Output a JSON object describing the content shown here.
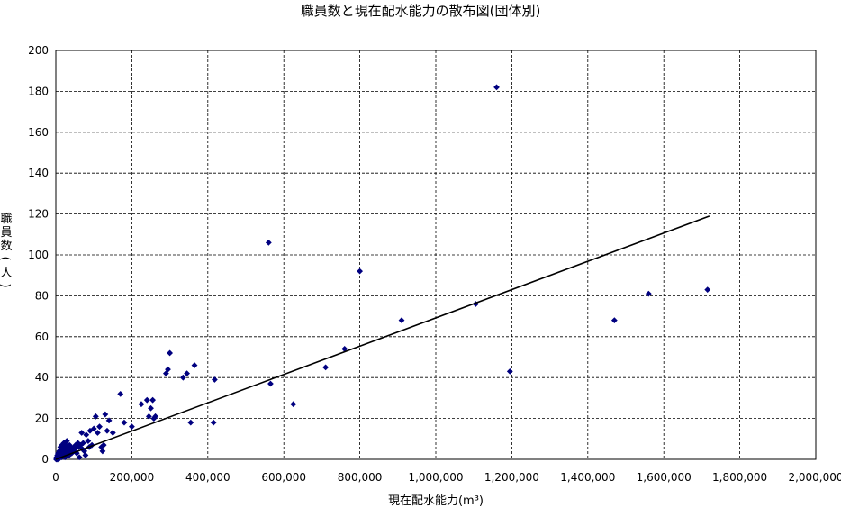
{
  "chart_data": {
    "type": "scatter",
    "title": "職員数と現在配水能力の散布図(団体別)",
    "xlabel": "現在配水能力(m³)",
    "ylabel_chars": [
      "職",
      "員",
      "数",
      "(",
      "人",
      ")"
    ],
    "xlim": [
      0,
      2000000
    ],
    "ylim": [
      0,
      200
    ],
    "x_ticks": [
      0,
      200000,
      400000,
      600000,
      800000,
      1000000,
      1200000,
      1400000,
      1600000,
      1800000,
      2000000
    ],
    "x_tick_labels": [
      "0",
      "200,000",
      "400,000",
      "600,000",
      "800,000",
      "1,000,000",
      "1,200,000",
      "1,400,000",
      "1,600,000",
      "1,800,000",
      "2,000,000"
    ],
    "y_ticks": [
      0,
      20,
      40,
      60,
      80,
      100,
      120,
      140,
      160,
      180,
      200
    ],
    "y_tick_labels": [
      "0",
      "20",
      "40",
      "60",
      "80",
      "100",
      "120",
      "140",
      "160",
      "180",
      "200"
    ],
    "grid": true,
    "marker_color": "#000080",
    "trendline": {
      "x": [
        0,
        1720000
      ],
      "y": [
        0,
        119
      ]
    },
    "points": [
      [
        1000,
        0
      ],
      [
        2000,
        1
      ],
      [
        3000,
        0
      ],
      [
        4000,
        2
      ],
      [
        5000,
        1
      ],
      [
        6000,
        3
      ],
      [
        7000,
        0
      ],
      [
        8000,
        2
      ],
      [
        9000,
        4
      ],
      [
        10000,
        1
      ],
      [
        11000,
        3
      ],
      [
        12000,
        6
      ],
      [
        13000,
        2
      ],
      [
        14000,
        5
      ],
      [
        15000,
        1
      ],
      [
        16000,
        7
      ],
      [
        17000,
        3
      ],
      [
        18000,
        4
      ],
      [
        19000,
        2
      ],
      [
        20000,
        6
      ],
      [
        21000,
        8
      ],
      [
        22000,
        3
      ],
      [
        23000,
        5
      ],
      [
        24000,
        1
      ],
      [
        25000,
        4
      ],
      [
        26000,
        7
      ],
      [
        27000,
        2
      ],
      [
        28000,
        6
      ],
      [
        29000,
        9
      ],
      [
        30000,
        4
      ],
      [
        31000,
        3
      ],
      [
        33000,
        5
      ],
      [
        35000,
        2
      ],
      [
        36000,
        7
      ],
      [
        38000,
        4
      ],
      [
        40000,
        6
      ],
      [
        42000,
        3
      ],
      [
        44000,
        5
      ],
      [
        46000,
        4
      ],
      [
        48000,
        6
      ],
      [
        50000,
        5
      ],
      [
        52000,
        7
      ],
      [
        55000,
        3
      ],
      [
        58000,
        8
      ],
      [
        60000,
        6
      ],
      [
        62000,
        1
      ],
      [
        65000,
        7
      ],
      [
        68000,
        13
      ],
      [
        70000,
        5
      ],
      [
        72000,
        8
      ],
      [
        75000,
        4
      ],
      [
        78000,
        2
      ],
      [
        80000,
        12
      ],
      [
        85000,
        9
      ],
      [
        88000,
        6
      ],
      [
        90000,
        14
      ],
      [
        95000,
        7
      ],
      [
        100000,
        15
      ],
      [
        105000,
        21
      ],
      [
        110000,
        13
      ],
      [
        115000,
        16
      ],
      [
        120000,
        6
      ],
      [
        123000,
        4
      ],
      [
        126000,
        7
      ],
      [
        130000,
        22
      ],
      [
        135000,
        14
      ],
      [
        140000,
        19
      ],
      [
        150000,
        13
      ],
      [
        170000,
        32
      ],
      [
        180000,
        18
      ],
      [
        200000,
        16
      ],
      [
        225000,
        27
      ],
      [
        240000,
        29
      ],
      [
        245000,
        21
      ],
      [
        250000,
        25
      ],
      [
        255000,
        29
      ],
      [
        258000,
        20
      ],
      [
        262000,
        21
      ],
      [
        290000,
        42
      ],
      [
        295000,
        44
      ],
      [
        300000,
        52
      ],
      [
        335000,
        40
      ],
      [
        345000,
        42
      ],
      [
        355000,
        18
      ],
      [
        365000,
        46
      ],
      [
        415000,
        18
      ],
      [
        418000,
        39
      ],
      [
        560000,
        106
      ],
      [
        565000,
        37
      ],
      [
        625000,
        27
      ],
      [
        710000,
        45
      ],
      [
        760000,
        54
      ],
      [
        800000,
        92
      ],
      [
        910000,
        68
      ],
      [
        1105000,
        76
      ],
      [
        1160000,
        182
      ],
      [
        1195000,
        43
      ],
      [
        1470000,
        68
      ],
      [
        1560000,
        81
      ],
      [
        1715000,
        83
      ]
    ]
  }
}
